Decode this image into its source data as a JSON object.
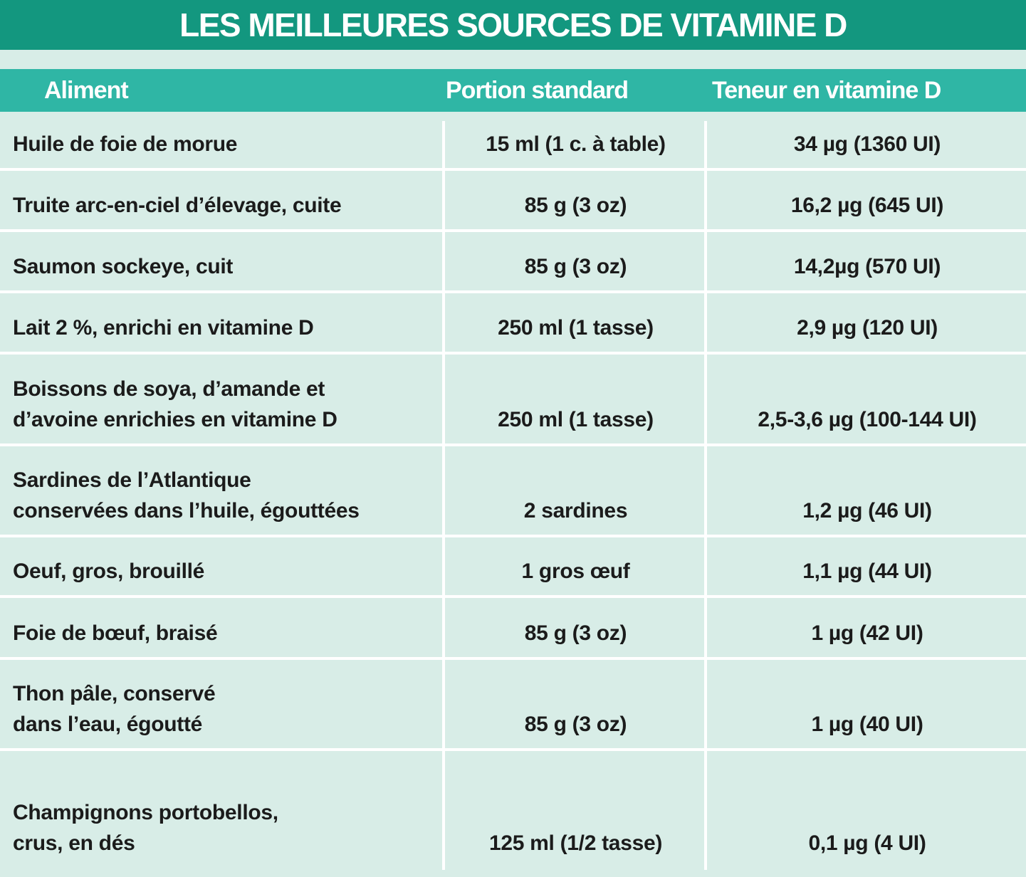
{
  "title": "LES MEILLEURES SOURCES DE VITAMINE D",
  "table": {
    "header": [
      "Aliment",
      "Portion standard",
      "Teneur en vitamine D"
    ],
    "rows": [
      [
        "Huile de foie de morue",
        "15 ml (1 c. à table)",
        "34 µg (1360 UI)"
      ],
      [
        "Truite arc-en-ciel d’élevage, cuite",
        "85 g (3 oz)",
        "16,2 µg (645 UI)"
      ],
      [
        "Saumon sockeye, cuit",
        "85 g (3 oz)",
        "14,2µg (570 UI)"
      ],
      [
        "Lait 2 %, enrichi en vitamine D",
        "250 ml (1 tasse)",
        "2,9 µg (120 UI)"
      ],
      [
        "Boissons de soya, d’amande et\nd’avoine enrichies en vitamine D",
        "250 ml (1 tasse)",
        "2,5-3,6 µg (100-144 UI)"
      ],
      [
        "Sardines de l’Atlantique\nconservées dans l’huile, égouttées",
        "2 sardines",
        "1,2 µg (46 UI)"
      ],
      [
        "Oeuf, gros, brouillé",
        "1 gros œuf",
        "1,1 µg (44 UI)"
      ],
      [
        "Foie de bœuf, braisé",
        "85 g (3 oz)",
        "1 µg (42 UI)"
      ],
      [
        "Thon pâle, conservé\ndans l’eau, égoutté",
        "85 g (3 oz)",
        "1 µg (40 UI)"
      ],
      [
        "Champignons portobellos,\ncrus, en dés",
        "125 ml (1/2 tasse)",
        "0,1 µg (4 UI)"
      ]
    ]
  }
}
